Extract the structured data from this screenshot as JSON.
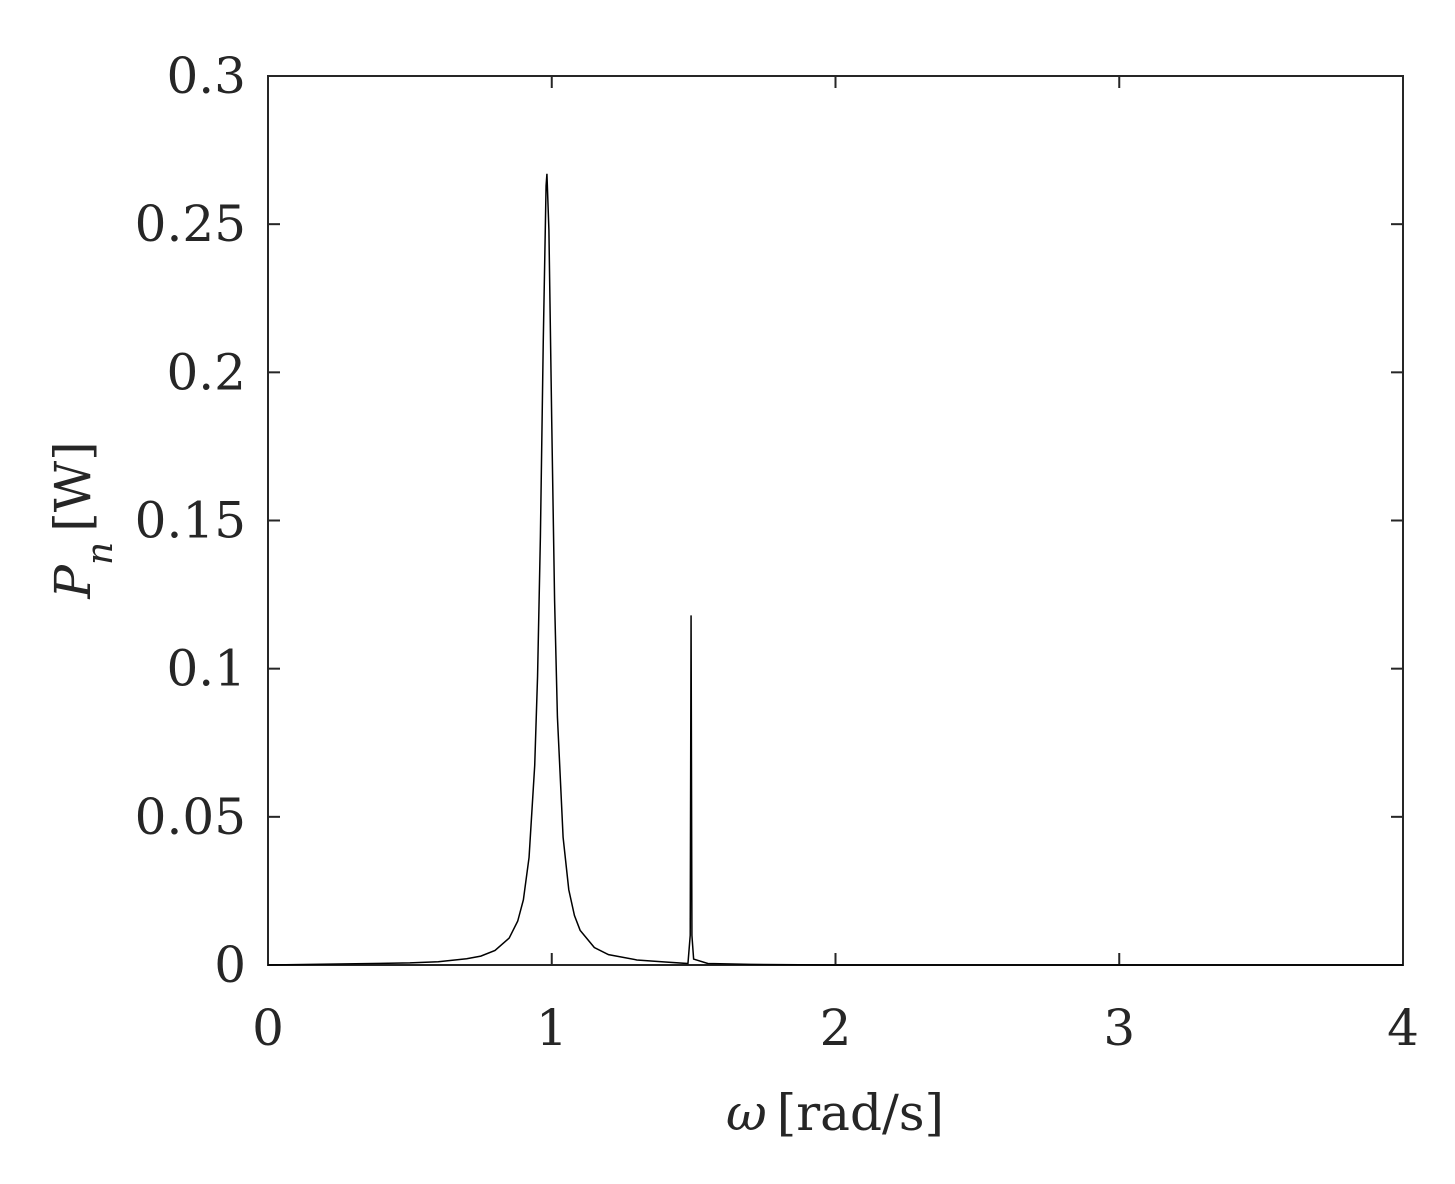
{
  "chart_data": {
    "type": "line",
    "xlabel": {
      "symbol": "ω",
      "unit": "[rad/s]"
    },
    "ylabel": {
      "symbol": "P",
      "subscript": "n",
      "unit": "[W]"
    },
    "x": [
      0,
      0.5,
      0.6,
      0.7,
      0.75,
      0.8,
      0.85,
      0.88,
      0.9,
      0.92,
      0.94,
      0.95,
      0.96,
      0.97,
      0.98,
      0.983,
      0.99,
      1.0,
      1.01,
      1.02,
      1.04,
      1.06,
      1.08,
      1.1,
      1.15,
      1.2,
      1.3,
      1.4,
      1.48,
      1.488,
      1.491,
      1.494,
      1.5,
      1.55,
      1.7,
      2,
      3,
      4
    ],
    "values": [
      0,
      0.0007,
      0.0011,
      0.0021,
      0.003,
      0.0049,
      0.0091,
      0.0148,
      0.022,
      0.0363,
      0.0674,
      0.0974,
      0.1446,
      0.21,
      0.263,
      0.267,
      0.248,
      0.183,
      0.123,
      0.0837,
      0.0431,
      0.0254,
      0.0167,
      0.0117,
      0.0059,
      0.0035,
      0.0017,
      0.001,
      0.0005,
      0.01,
      0.118,
      0.01,
      0.002,
      0.0005,
      0.0002,
      0,
      0,
      0
    ],
    "color": "#000000",
    "xlim": [
      0,
      4
    ],
    "xticks": [
      0,
      1,
      2,
      3,
      4
    ],
    "ylim": [
      0,
      0.3
    ],
    "yticks": [
      0,
      0.05,
      0.1,
      0.15,
      0.2,
      0.25,
      0.3
    ],
    "grid": false
  }
}
